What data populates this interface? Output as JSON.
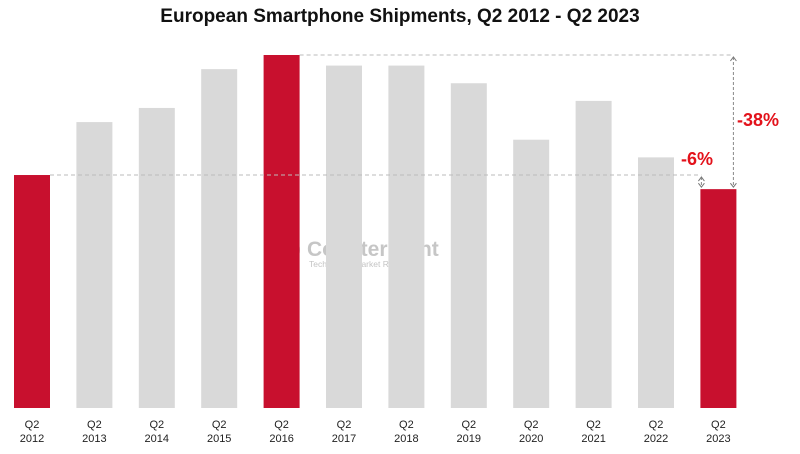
{
  "chart_data": {
    "type": "bar",
    "title": "European Smartphone Shipments, Q2 2012 - Q2 2023",
    "xlabel": "",
    "ylabel": "",
    "categories": [
      "Q2 2012",
      "Q2 2013",
      "Q2 2014",
      "Q2 2015",
      "Q2 2016",
      "Q2 2017",
      "Q2 2018",
      "Q2 2019",
      "Q2 2020",
      "Q2 2021",
      "Q2 2022",
      "Q2 2023"
    ],
    "values": [
      66,
      81,
      85,
      96,
      100,
      97,
      97,
      92,
      76,
      87,
      71,
      62
    ],
    "ylim": [
      0,
      100
    ],
    "grid": false,
    "legend": "none",
    "highlighted": [
      "Q2 2012",
      "Q2 2016",
      "Q2 2023"
    ],
    "annotations": [
      {
        "text": "-6%",
        "from": "Q2 2012",
        "to": "Q2 2023"
      },
      {
        "text": "-38%",
        "from": "Q2 2016",
        "to": "Q2 2023"
      }
    ],
    "colors": {
      "highlight": "#c8102e",
      "bar": "#d9d9d9",
      "annotation": "#e3121b"
    }
  },
  "watermark": {
    "name": "Counterpoint",
    "tagline": "Technology Market Research"
  }
}
